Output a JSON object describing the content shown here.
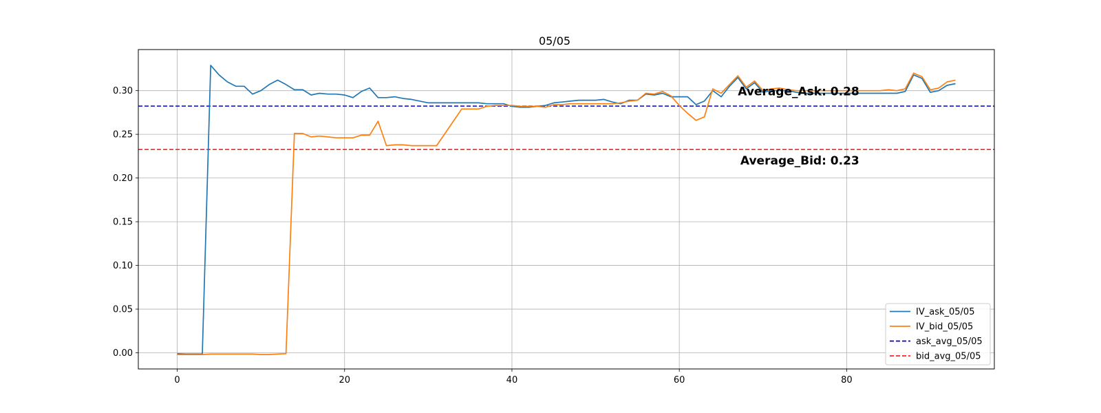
{
  "chart_data": {
    "type": "line",
    "title": "05/05",
    "xlabel": "",
    "ylabel": "",
    "xlim": [
      -4.65,
      97.65
    ],
    "ylim": [
      -0.0185,
      0.347
    ],
    "xticks": [
      0,
      20,
      40,
      60,
      80
    ],
    "xtick_labels": [
      "0",
      "20",
      "40",
      "60",
      "80"
    ],
    "yticks": [
      0.0,
      0.05,
      0.1,
      0.15,
      0.2,
      0.25,
      0.3
    ],
    "ytick_labels": [
      "0.00",
      "0.05",
      "0.10",
      "0.15",
      "0.20",
      "0.25",
      "0.30"
    ],
    "grid": true,
    "legend_position": "lower-right",
    "series": [
      {
        "name": "IV_ask_05/05",
        "color": "#1f77b4",
        "style": "solid",
        "x": [
          0,
          1,
          2,
          3,
          4,
          5,
          6,
          7,
          8,
          9,
          10,
          11,
          12,
          13,
          14,
          15,
          16,
          17,
          18,
          19,
          20,
          21,
          22,
          23,
          24,
          25,
          26,
          27,
          28,
          29,
          30,
          31,
          32,
          33,
          34,
          35,
          36,
          37,
          38,
          39,
          40,
          41,
          42,
          43,
          44,
          45,
          46,
          47,
          48,
          49,
          50,
          51,
          52,
          53,
          54,
          55,
          56,
          57,
          58,
          59,
          60,
          61,
          62,
          63,
          64,
          65,
          66,
          67,
          68,
          69,
          70,
          71,
          72,
          73,
          74,
          75,
          76,
          77,
          78,
          79,
          80,
          81,
          82,
          83,
          84,
          85,
          86,
          87,
          88,
          89,
          90,
          91,
          92,
          93
        ],
        "y": [
          -0.001,
          -0.0015,
          -0.0015,
          -0.0015,
          0.329,
          0.318,
          0.31,
          0.305,
          0.305,
          0.296,
          0.3,
          0.307,
          0.312,
          0.307,
          0.301,
          0.301,
          0.295,
          0.297,
          0.296,
          0.296,
          0.295,
          0.292,
          0.299,
          0.303,
          0.292,
          0.292,
          0.293,
          0.291,
          0.29,
          0.288,
          0.286,
          0.286,
          0.286,
          0.286,
          0.286,
          0.286,
          0.286,
          0.285,
          0.285,
          0.285,
          0.282,
          0.281,
          0.281,
          0.282,
          0.283,
          0.286,
          0.287,
          0.288,
          0.289,
          0.289,
          0.289,
          0.29,
          0.287,
          0.285,
          0.289,
          0.289,
          0.296,
          0.295,
          0.297,
          0.293,
          0.293,
          0.293,
          0.284,
          0.288,
          0.3,
          0.293,
          0.305,
          0.315,
          0.302,
          0.309,
          0.298,
          0.3,
          0.3,
          0.3,
          0.298,
          0.297,
          0.297,
          0.297,
          0.297,
          0.297,
          0.297,
          0.297,
          0.297,
          0.297,
          0.297,
          0.297,
          0.297,
          0.299,
          0.318,
          0.314,
          0.298,
          0.3,
          0.306,
          0.308
        ]
      },
      {
        "name": "IV_bid_05/05",
        "color": "#ff7f0e",
        "style": "solid",
        "x": [
          0,
          1,
          2,
          3,
          4,
          5,
          6,
          7,
          8,
          9,
          10,
          11,
          12,
          13,
          14,
          15,
          16,
          17,
          18,
          19,
          20,
          21,
          22,
          23,
          24,
          25,
          26,
          27,
          28,
          29,
          30,
          31,
          32,
          33,
          34,
          35,
          36,
          37,
          38,
          39,
          40,
          41,
          42,
          43,
          44,
          45,
          46,
          47,
          48,
          49,
          50,
          51,
          52,
          53,
          54,
          55,
          56,
          57,
          58,
          59,
          60,
          61,
          62,
          63,
          64,
          65,
          66,
          67,
          68,
          69,
          70,
          71,
          72,
          73,
          74,
          75,
          76,
          77,
          78,
          79,
          80,
          81,
          82,
          83,
          84,
          85,
          86,
          87,
          88,
          89,
          90,
          91,
          92,
          93
        ],
        "y": [
          -0.002,
          -0.002,
          -0.002,
          -0.002,
          -0.0015,
          -0.0015,
          -0.0015,
          -0.0015,
          -0.0015,
          -0.0015,
          -0.002,
          -0.002,
          -0.0015,
          -0.001,
          0.251,
          0.251,
          0.247,
          0.248,
          0.247,
          0.246,
          0.246,
          0.246,
          0.249,
          0.249,
          0.265,
          0.237,
          0.238,
          0.238,
          0.237,
          0.237,
          0.237,
          0.237,
          0.251,
          0.265,
          0.279,
          0.279,
          0.279,
          0.282,
          0.283,
          0.283,
          0.283,
          0.282,
          0.282,
          0.282,
          0.281,
          0.284,
          0.284,
          0.285,
          0.285,
          0.285,
          0.285,
          0.285,
          0.285,
          0.286,
          0.288,
          0.289,
          0.297,
          0.296,
          0.299,
          0.294,
          0.283,
          0.274,
          0.266,
          0.27,
          0.302,
          0.297,
          0.307,
          0.317,
          0.304,
          0.311,
          0.3,
          0.302,
          0.303,
          0.301,
          0.3,
          0.3,
          0.3,
          0.3,
          0.3,
          0.3,
          0.3,
          0.3,
          0.3,
          0.3,
          0.3,
          0.301,
          0.3,
          0.302,
          0.32,
          0.316,
          0.301,
          0.303,
          0.31,
          0.312
        ]
      },
      {
        "name": "ask_avg_05/05",
        "color": "#0000cc",
        "style": "dashed",
        "value": 0.2823
      },
      {
        "name": "bid_avg_05/05",
        "color": "#ff2020",
        "style": "dashed",
        "value": 0.2326
      }
    ],
    "annotations": [
      {
        "text": "Average_Ask: 0.28",
        "x": 67,
        "y": 0.2947
      },
      {
        "text": "Average_Bid: 0.23",
        "x": 67.3,
        "y": 0.2155
      }
    ]
  }
}
